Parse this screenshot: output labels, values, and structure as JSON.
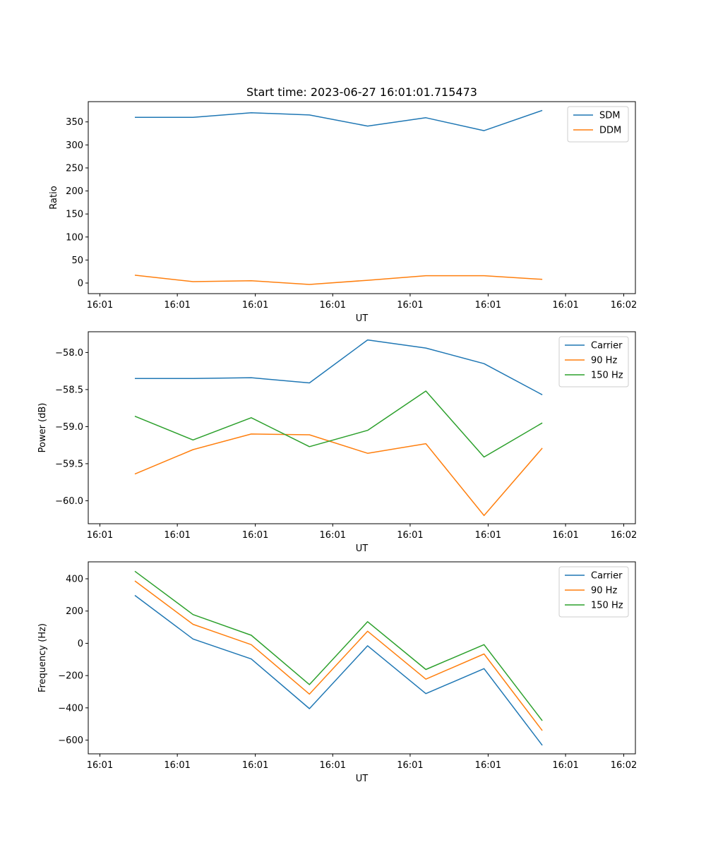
{
  "figure": {
    "title": "Start time: 2023-06-27 16:01:01.715473"
  },
  "chart_data": [
    {
      "type": "line",
      "title": "Start time: 2023-06-27 16:01:01.715473",
      "xlabel": "UT",
      "ylabel": "Ratio",
      "x_tick_labels": [
        "16:01",
        "16:01",
        "16:01",
        "16:01",
        "16:01",
        "16:01",
        "16:01"
      ],
      "x_end_tick_label": "16:02",
      "x_points": [
        1,
        2,
        3,
        4,
        5,
        6,
        7,
        8
      ],
      "xlim": [
        0.2,
        9.6
      ],
      "ylim": [
        -23,
        394
      ],
      "yticks": [
        0,
        50,
        100,
        150,
        200,
        250,
        300,
        350
      ],
      "legend": "top-right",
      "series": [
        {
          "name": "SDM",
          "color": "#1f77b4",
          "values": [
            360,
            360,
            370,
            365,
            341,
            359,
            331,
            375
          ]
        },
        {
          "name": "DDM",
          "color": "#ff7f0e",
          "values": [
            17,
            3,
            5,
            -3,
            6,
            16,
            16,
            8
          ]
        }
      ]
    },
    {
      "type": "line",
      "xlabel": "UT",
      "ylabel": "Power (dB)",
      "x_tick_labels": [
        "16:01",
        "16:01",
        "16:01",
        "16:01",
        "16:01",
        "16:01",
        "16:01"
      ],
      "x_end_tick_label": "16:02",
      "x_points": [
        1,
        2,
        3,
        4,
        5,
        6,
        7,
        8
      ],
      "xlim": [
        0.2,
        9.6
      ],
      "ylim": [
        -60.31,
        -57.72
      ],
      "yticks": [
        -60.0,
        -59.5,
        -59.0,
        -58.5,
        -58.0
      ],
      "ytick_labels": [
        "−60.0",
        "−59.5",
        "−59.0",
        "−58.5",
        "−58.0"
      ],
      "legend": "top-right",
      "series": [
        {
          "name": "Carrier",
          "color": "#1f77b4",
          "values": [
            -58.35,
            -58.35,
            -58.34,
            -58.41,
            -57.83,
            -57.94,
            -58.15,
            -58.57
          ]
        },
        {
          "name": "90 Hz",
          "color": "#ff7f0e",
          "values": [
            -59.64,
            -59.31,
            -59.1,
            -59.11,
            -59.36,
            -59.23,
            -60.2,
            -59.29
          ]
        },
        {
          "name": "150 Hz",
          "color": "#2ca02c",
          "values": [
            -58.86,
            -59.18,
            -58.88,
            -59.27,
            -59.05,
            -58.52,
            -59.41,
            -58.95
          ]
        }
      ]
    },
    {
      "type": "line",
      "xlabel": "UT",
      "ylabel": "Frequency (Hz)",
      "x_tick_labels": [
        "16:01",
        "16:01",
        "16:01",
        "16:01",
        "16:01",
        "16:01",
        "16:01"
      ],
      "x_end_tick_label": "16:02",
      "x_points": [
        1,
        2,
        3,
        4,
        5,
        6,
        7,
        8
      ],
      "xlim": [
        0.2,
        9.6
      ],
      "ylim": [
        -685,
        505
      ],
      "yticks": [
        -600,
        -400,
        -200,
        0,
        200,
        400
      ],
      "ytick_labels": [
        "−600",
        "−400",
        "−200",
        "0",
        "200",
        "400"
      ],
      "legend": "top-right",
      "series": [
        {
          "name": "Carrier",
          "color": "#1f77b4",
          "values": [
            297,
            27,
            -97,
            -405,
            -15,
            -312,
            -157,
            -632
          ]
        },
        {
          "name": "90 Hz",
          "color": "#ff7f0e",
          "values": [
            387,
            118,
            -8,
            -315,
            75,
            -222,
            -66,
            -541
          ]
        },
        {
          "name": "150 Hz",
          "color": "#2ca02c",
          "values": [
            447,
            178,
            50,
            -256,
            134,
            -162,
            -8,
            -480
          ]
        }
      ]
    }
  ]
}
